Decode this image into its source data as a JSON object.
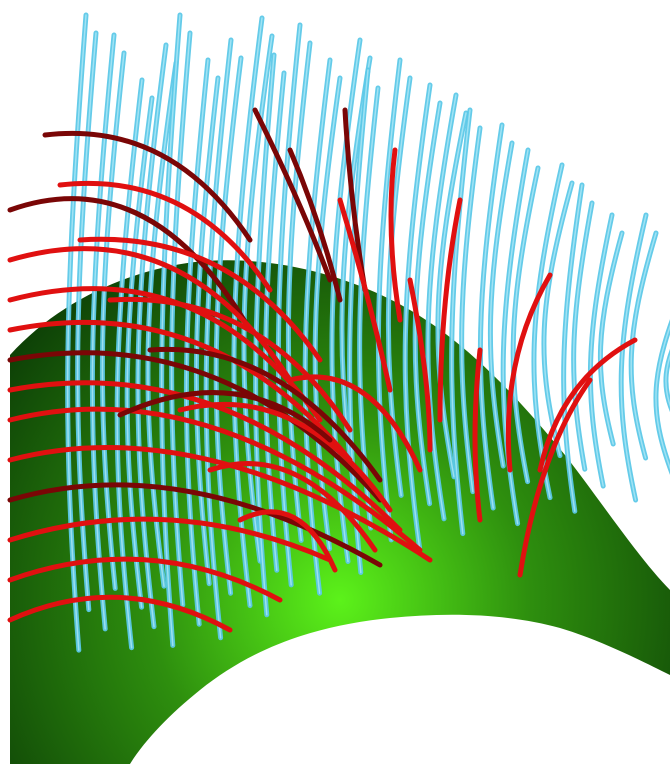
{
  "scene": {
    "colors": {
      "background": "#ffffff",
      "surface_highlight": "#5cf21a",
      "surface_mid": "#2e8f0e",
      "surface_dark": "#0c3d06",
      "fiber_blue": "#5cc8e8",
      "fiber_blue_light": "#b9ecf8",
      "fiber_red": "#e01010",
      "fiber_red_dark": "#7a0606"
    },
    "elements": [
      "curved-surface",
      "blue-fibers",
      "red-fibers"
    ]
  }
}
